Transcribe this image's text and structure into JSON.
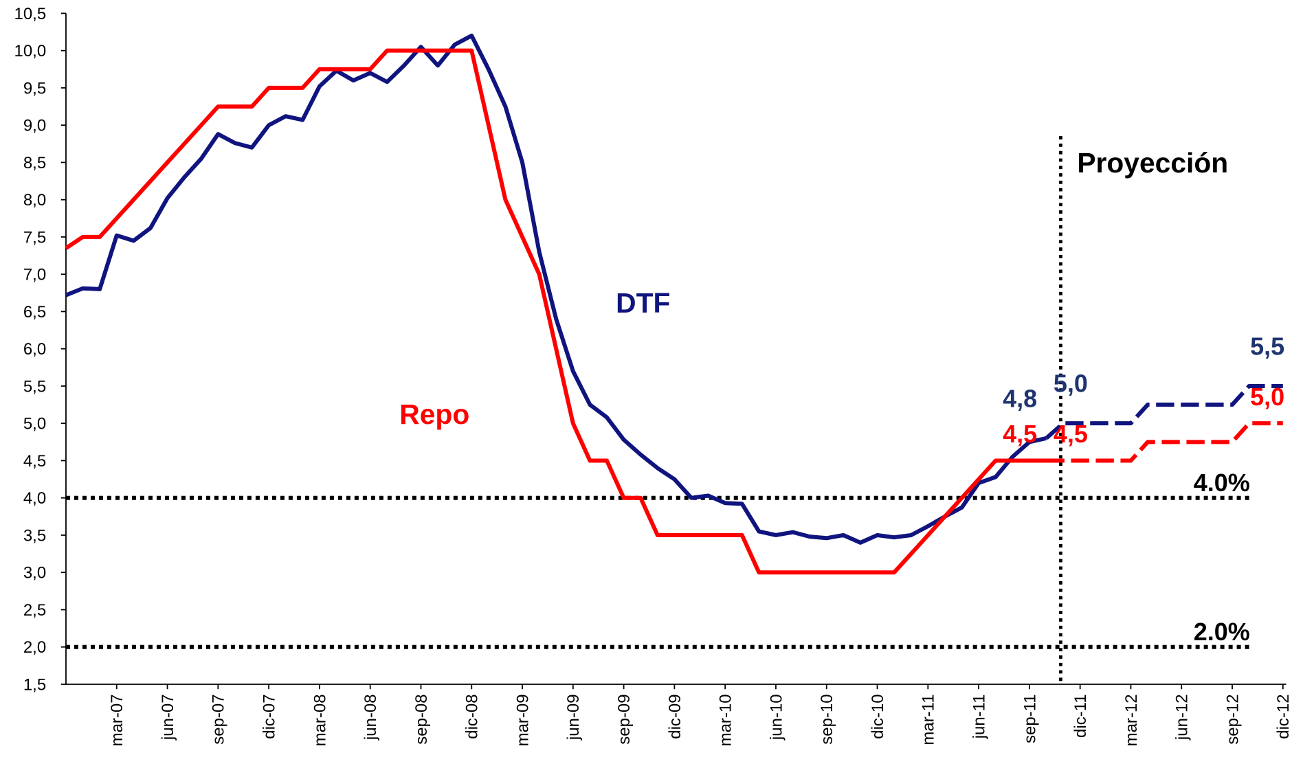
{
  "chart_data": {
    "type": "line",
    "categories": [
      null,
      null,
      null,
      "mar-07",
      null,
      null,
      "jun-07",
      null,
      null,
      "sep-07",
      null,
      null,
      "dic-07",
      null,
      null,
      "mar-08",
      null,
      null,
      "jun-08",
      null,
      null,
      "sep-08",
      null,
      null,
      "dic-08",
      null,
      null,
      "mar-09",
      null,
      null,
      "jun-09",
      null,
      null,
      "sep-09",
      null,
      null,
      "dic-09",
      null,
      null,
      "mar-10",
      null,
      null,
      "jun-10",
      null,
      null,
      "sep-10",
      null,
      null,
      "dic-10",
      null,
      null,
      "mar-11",
      null,
      null,
      "jun-11",
      null,
      null,
      "sep-11",
      null,
      null,
      "dic-11",
      null,
      null,
      "mar-12",
      null,
      null,
      "jun-12",
      null,
      null,
      "sep-12",
      null,
      null,
      "dic-12"
    ],
    "series": [
      {
        "name": "DTF",
        "color": "#10147e",
        "style": "solid",
        "values": [
          6.72,
          6.81,
          6.8,
          7.52,
          7.45,
          7.62,
          8.02,
          8.3,
          8.55,
          8.88,
          8.76,
          8.7,
          9.0,
          9.12,
          9.07,
          9.52,
          9.73,
          9.6,
          9.7,
          9.58,
          9.8,
          10.05,
          9.8,
          10.08,
          10.2,
          9.75,
          9.25,
          8.5,
          7.3,
          6.4,
          5.7,
          5.25,
          5.08,
          4.78,
          4.58,
          4.4,
          4.25,
          4.0,
          4.03,
          3.93,
          3.92,
          3.55,
          3.5,
          3.54,
          3.48,
          3.46,
          3.5,
          3.4,
          3.5,
          3.47,
          3.5,
          3.62,
          3.75,
          3.87,
          4.2,
          4.28,
          4.55,
          4.75,
          4.8,
          null,
          null,
          null,
          null,
          null,
          null,
          null,
          null,
          null,
          null,
          null,
          null,
          null,
          null
        ]
      },
      {
        "name": "Repo",
        "color": "#ff0000",
        "style": "solid",
        "values": [
          7.35,
          7.5,
          7.5,
          7.75,
          8.0,
          8.25,
          8.5,
          8.75,
          9.0,
          9.25,
          9.25,
          9.25,
          9.5,
          9.5,
          9.5,
          9.75,
          9.75,
          9.75,
          9.75,
          10.0,
          10.0,
          10.0,
          10.0,
          10.0,
          10.0,
          9.0,
          8.0,
          7.5,
          7.0,
          6.0,
          5.0,
          4.5,
          4.5,
          4.0,
          4.0,
          3.5,
          3.5,
          3.5,
          3.5,
          3.5,
          3.5,
          3.0,
          3.0,
          3.0,
          3.0,
          3.0,
          3.0,
          3.0,
          3.0,
          3.0,
          3.25,
          3.5,
          3.75,
          4.0,
          4.25,
          4.5,
          4.5,
          4.5,
          4.5,
          null,
          null,
          null,
          null,
          null,
          null,
          null,
          null,
          null,
          null,
          null,
          null,
          null,
          null
        ]
      },
      {
        "name": "DTF",
        "color": "#10147e",
        "style": "dashed",
        "values": [
          null,
          null,
          null,
          null,
          null,
          null,
          null,
          null,
          null,
          null,
          null,
          null,
          null,
          null,
          null,
          null,
          null,
          null,
          null,
          null,
          null,
          null,
          null,
          null,
          null,
          null,
          null,
          null,
          null,
          null,
          null,
          null,
          null,
          null,
          null,
          null,
          null,
          null,
          null,
          null,
          null,
          null,
          null,
          null,
          null,
          null,
          null,
          null,
          null,
          null,
          null,
          null,
          null,
          null,
          null,
          null,
          null,
          null,
          4.8,
          5.0,
          5.0,
          5.0,
          5.0,
          5.0,
          5.25,
          5.25,
          5.25,
          5.25,
          5.25,
          5.25,
          5.5,
          5.5,
          5.5
        ],
        "value_labels": [
          null,
          null,
          null,
          null,
          null,
          null,
          null,
          null,
          null,
          null,
          null,
          null,
          null,
          null,
          null,
          null,
          null,
          null,
          null,
          null,
          null,
          null,
          null,
          null,
          null,
          null,
          null,
          null,
          null,
          null,
          null,
          null,
          null,
          null,
          null,
          null,
          null,
          null,
          null,
          null,
          null,
          null,
          null,
          null,
          null,
          null,
          null,
          null,
          null,
          null,
          null,
          null,
          null,
          null,
          null,
          null,
          null,
          null,
          "4,8",
          null,
          null,
          "5,0",
          null,
          null,
          null,
          null,
          null,
          null,
          null,
          null,
          null,
          null,
          "5,5"
        ]
      },
      {
        "name": "Repo",
        "color": "#ff0000",
        "style": "dashed",
        "values": [
          null,
          null,
          null,
          null,
          null,
          null,
          null,
          null,
          null,
          null,
          null,
          null,
          null,
          null,
          null,
          null,
          null,
          null,
          null,
          null,
          null,
          null,
          null,
          null,
          null,
          null,
          null,
          null,
          null,
          null,
          null,
          null,
          null,
          null,
          null,
          null,
          null,
          null,
          null,
          null,
          null,
          null,
          null,
          null,
          null,
          null,
          null,
          null,
          null,
          null,
          null,
          null,
          null,
          null,
          null,
          null,
          null,
          null,
          4.5,
          4.5,
          4.5,
          4.5,
          4.5,
          4.5,
          4.75,
          4.75,
          4.75,
          4.75,
          4.75,
          4.75,
          5.0,
          5.0,
          5.0
        ],
        "value_labels": [
          null,
          null,
          null,
          null,
          null,
          null,
          null,
          null,
          null,
          null,
          null,
          null,
          null,
          null,
          null,
          null,
          null,
          null,
          null,
          null,
          null,
          null,
          null,
          null,
          null,
          null,
          null,
          null,
          null,
          null,
          null,
          null,
          null,
          null,
          null,
          null,
          null,
          null,
          null,
          null,
          null,
          null,
          null,
          null,
          null,
          null,
          null,
          null,
          null,
          null,
          null,
          null,
          null,
          null,
          null,
          null,
          null,
          null,
          "4,5",
          null,
          null,
          "4,5",
          null,
          null,
          null,
          null,
          null,
          null,
          null,
          null,
          null,
          null,
          "5,0"
        ]
      }
    ],
    "ylim": [
      1.5,
      10.5
    ],
    "yticks": [
      {
        "value": 1.5,
        "label": "1,5"
      },
      {
        "value": 2,
        "label": "2,0"
      },
      {
        "value": 2.5,
        "label": "2,5"
      },
      {
        "value": 3,
        "label": "3,0"
      },
      {
        "value": 3.5,
        "label": "3,5"
      },
      {
        "value": 4,
        "label": "4,0"
      },
      {
        "value": 4.5,
        "label": "4,5"
      },
      {
        "value": 5,
        "label": "5,0"
      },
      {
        "value": 5.5,
        "label": "5,5"
      },
      {
        "value": 6,
        "label": "6,0"
      },
      {
        "value": 6.5,
        "label": "6,5"
      },
      {
        "value": 7,
        "label": "7,0"
      },
      {
        "value": 7.5,
        "label": "7,5"
      },
      {
        "value": 8,
        "label": "8,0"
      },
      {
        "value": 8.5,
        "label": "8,5"
      },
      {
        "value": 9,
        "label": "9,0"
      },
      {
        "value": 9.5,
        "label": "9,5"
      },
      {
        "value": 10,
        "label": "10,0"
      },
      {
        "value": 10.5,
        "label": "10,5"
      }
    ],
    "grid": false,
    "reference_lines": [
      {
        "value": 4,
        "label": "4.0%"
      },
      {
        "value": 2,
        "label": "2.0%"
      }
    ],
    "projection_label": "Proyección"
  }
}
